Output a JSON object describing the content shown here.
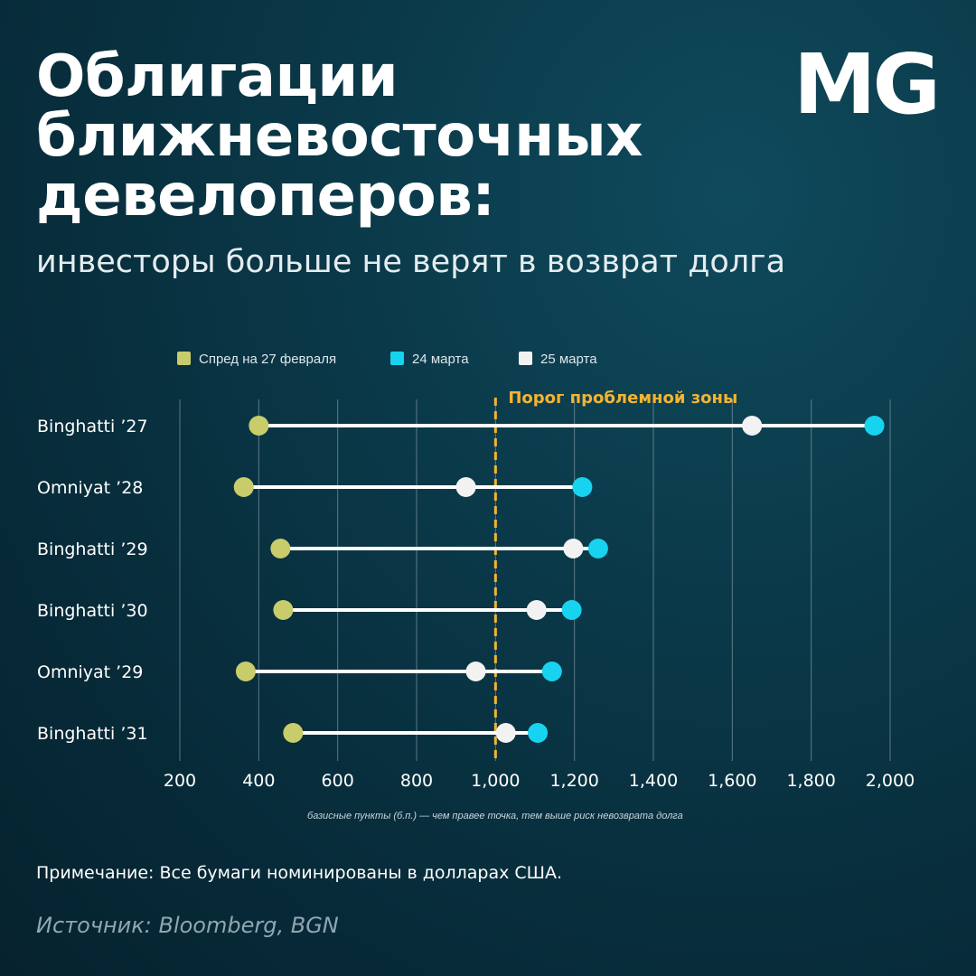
{
  "title_lines": [
    "Облигации",
    "ближневосточных",
    "девелоперов:"
  ],
  "subtitle": "инвесторы больше не верят в возврат долга",
  "logo": "MG",
  "note": "Примечание: Все бумаги номинированы в долларах США.",
  "source": "Источник: Bloomberg, BGN",
  "colors": {
    "background": "#072a38",
    "feb27": "#c9cc6a",
    "mar24": "#17d3ef",
    "mar25": "#f2f2f2",
    "threshold": "#f3b431",
    "grid": "#7f97a1"
  },
  "chart_data": {
    "type": "dumbbell",
    "title": "Облигации ближневосточных девелоперов:",
    "subtitle": "инвесторы больше не верят в возврат долга",
    "xlabel": "базисные пункты (б.п.) — чем правее точка, тем выше риск невозврата долга",
    "xlim": [
      200,
      2000
    ],
    "x_ticks": [
      200,
      400,
      600,
      800,
      1000,
      1200,
      1400,
      1600,
      1800,
      2000
    ],
    "x_tick_labels": [
      "200",
      "400",
      "600",
      "800",
      "1,000",
      "1,200",
      "1,400",
      "1,600",
      "1,800",
      "2,000"
    ],
    "categories": [
      "Binghatti ’27",
      "Omniyat ’28",
      "Binghatti ’29",
      "Binghatti ’30",
      "Omniyat ’29",
      "Binghatti ’31"
    ],
    "series": [
      {
        "name": "Спред на 27 февраля",
        "color": "#c9cc6a",
        "values": [
          400,
          362,
          455,
          462,
          367,
          487
        ]
      },
      {
        "name": "24 марта",
        "color": "#17d3ef",
        "values": [
          1960,
          1220,
          1260,
          1193,
          1143,
          1107
        ]
      },
      {
        "name": "25 марта",
        "color": "#f2f2f2",
        "values": [
          1650,
          925,
          1197,
          1104,
          950,
          1026
        ]
      }
    ],
    "legend_position": "top-center",
    "threshold": {
      "value": 1000,
      "label": "Порог проблемной зоны"
    }
  }
}
